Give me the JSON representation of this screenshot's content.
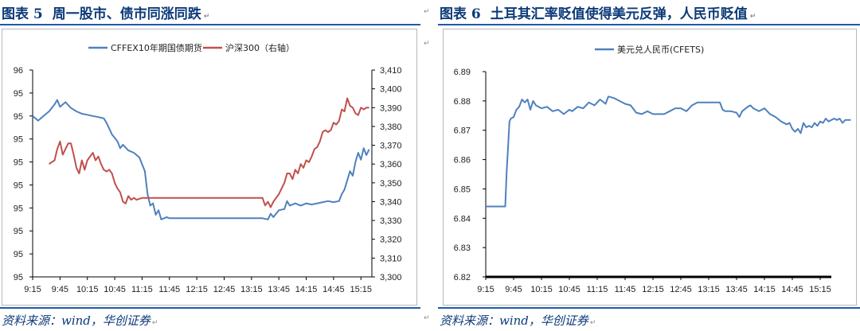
{
  "left": {
    "fig_num": "图表 5",
    "title": "周一股市、债市同涨同跌",
    "title_mark": "↵",
    "source": "资料来源：wind，华创证券",
    "source_mark": "↵"
  },
  "right": {
    "fig_num": "图表 6",
    "title": "土耳其汇率贬值使得美元反弹，人民币贬值",
    "title_mark": "↵",
    "source": "资料来源：wind，华创证券",
    "source_mark": "↵"
  },
  "colors": {
    "blue": "#4f81bd",
    "red": "#c0504d",
    "axis": "#000000",
    "title": "#0c3a78"
  },
  "chart_data": [
    {
      "type": "line",
      "x_ticks": [
        "9:15",
        "9:45",
        "10:15",
        "10:45",
        "11:15",
        "11:45",
        "12:15",
        "12:45",
        "13:15",
        "13:45",
        "14:15",
        "14:45",
        "15:15"
      ],
      "y_left_ticks": [
        "95",
        "95",
        "95",
        "95",
        "95",
        "95",
        "95",
        "95",
        "95",
        "96"
      ],
      "y_right_ticks": [
        "3,300",
        "3,310",
        "3,320",
        "3,330",
        "3,340",
        "3,350",
        "3,360",
        "3,370",
        "3,380",
        "3,390",
        "3,400",
        "3,410"
      ],
      "y_right_range": [
        3300,
        3410
      ],
      "series": [
        {
          "name": "CFFEX10年期国债期货",
          "axis": "left",
          "color": "#4f81bd",
          "points": [
            [
              0,
              7.0
            ],
            [
              2,
              6.8
            ],
            [
              4,
              7.0
            ],
            [
              6,
              7.2
            ],
            [
              8,
              7.5
            ],
            [
              9,
              7.7
            ],
            [
              10,
              7.4
            ],
            [
              12,
              7.6
            ],
            [
              14,
              7.35
            ],
            [
              16,
              7.2
            ],
            [
              18,
              7.1
            ],
            [
              20,
              7.05
            ],
            [
              22,
              7.0
            ],
            [
              24,
              6.95
            ],
            [
              26,
              6.9
            ],
            [
              27,
              6.7
            ],
            [
              29,
              6.2
            ],
            [
              31,
              5.9
            ],
            [
              32,
              5.6
            ],
            [
              33,
              5.75
            ],
            [
              35,
              5.5
            ],
            [
              37,
              5.4
            ],
            [
              39,
              5.2
            ],
            [
              40,
              4.9
            ],
            [
              41,
              4.6
            ],
            [
              42,
              3.6
            ],
            [
              43,
              3.1
            ],
            [
              44,
              3.2
            ],
            [
              45,
              2.7
            ],
            [
              46,
              2.9
            ],
            [
              47,
              2.5
            ],
            [
              48,
              2.55
            ],
            [
              49,
              2.6
            ],
            [
              50,
              2.55
            ],
            [
              55,
              2.55
            ],
            [
              60,
              2.55
            ],
            [
              65,
              2.55
            ],
            [
              70,
              2.55
            ],
            [
              75,
              2.55
            ],
            [
              80,
              2.55
            ],
            [
              84,
              2.55
            ],
            [
              86,
              2.5
            ],
            [
              87,
              2.75
            ],
            [
              88,
              2.6
            ],
            [
              90,
              2.9
            ],
            [
              92,
              2.95
            ],
            [
              93,
              3.3
            ],
            [
              94,
              3.1
            ],
            [
              96,
              3.2
            ],
            [
              98,
              3.1
            ],
            [
              100,
              3.2
            ],
            [
              102,
              3.15
            ],
            [
              104,
              3.2
            ],
            [
              106,
              3.25
            ],
            [
              108,
              3.3
            ],
            [
              110,
              3.25
            ],
            [
              112,
              3.3
            ],
            [
              113,
              3.6
            ],
            [
              114,
              3.8
            ],
            [
              115,
              4.2
            ],
            [
              116,
              4.6
            ],
            [
              117,
              4.4
            ],
            [
              118,
              5.0
            ],
            [
              119,
              5.4
            ],
            [
              120,
              5.1
            ],
            [
              121,
              5.6
            ],
            [
              122,
              5.3
            ],
            [
              123,
              5.55
            ]
          ]
        },
        {
          "name": "沪深300（右轴）",
          "axis": "right",
          "color": "#c0504d",
          "points": [
            [
              6,
              3360
            ],
            [
              7,
              3361
            ],
            [
              8,
              3362
            ],
            [
              9,
              3368
            ],
            [
              10,
              3372
            ],
            [
              11,
              3365
            ],
            [
              12,
              3368
            ],
            [
              13,
              3371
            ],
            [
              14,
              3371
            ],
            [
              15,
              3365
            ],
            [
              16,
              3358
            ],
            [
              17,
              3355
            ],
            [
              18,
              3362
            ],
            [
              19,
              3357
            ],
            [
              20,
              3362
            ],
            [
              21,
              3364
            ],
            [
              22,
              3366
            ],
            [
              23,
              3362
            ],
            [
              24,
              3364
            ],
            [
              25,
              3360
            ],
            [
              26,
              3357
            ],
            [
              27,
              3356
            ],
            [
              28,
              3357
            ],
            [
              29,
              3355
            ],
            [
              30,
              3350
            ],
            [
              31,
              3347
            ],
            [
              32,
              3345
            ],
            [
              33,
              3340
            ],
            [
              34,
              3339
            ],
            [
              35,
              3343
            ],
            [
              36,
              3341
            ],
            [
              37,
              3342
            ],
            [
              38,
              3341
            ],
            [
              40,
              3342
            ],
            [
              45,
              3342
            ],
            [
              50,
              3342
            ],
            [
              55,
              3342
            ],
            [
              60,
              3342
            ],
            [
              65,
              3342
            ],
            [
              70,
              3342
            ],
            [
              75,
              3342
            ],
            [
              80,
              3342
            ],
            [
              84,
              3342
            ],
            [
              85,
              3338
            ],
            [
              86,
              3340
            ],
            [
              87,
              3337
            ],
            [
              88,
              3340
            ],
            [
              89,
              3342
            ],
            [
              90,
              3344
            ],
            [
              91,
              3347
            ],
            [
              92,
              3350
            ],
            [
              93,
              3355
            ],
            [
              94,
              3355
            ],
            [
              95,
              3352
            ],
            [
              96,
              3357
            ],
            [
              97,
              3355
            ],
            [
              98,
              3360
            ],
            [
              99,
              3358
            ],
            [
              100,
              3362
            ],
            [
              101,
              3361
            ],
            [
              102,
              3364
            ],
            [
              103,
              3368
            ],
            [
              104,
              3369
            ],
            [
              105,
              3372
            ],
            [
              106,
              3377
            ],
            [
              107,
              3378
            ],
            [
              108,
              3377
            ],
            [
              109,
              3378
            ],
            [
              110,
              3382
            ],
            [
              111,
              3381
            ],
            [
              112,
              3383
            ],
            [
              113,
              3389
            ],
            [
              114,
              3388
            ],
            [
              115,
              3395
            ],
            [
              116,
              3391
            ],
            [
              117,
              3390
            ],
            [
              118,
              3387
            ],
            [
              119,
              3386
            ],
            [
              120,
              3390
            ],
            [
              121,
              3389
            ],
            [
              122,
              3390
            ],
            [
              123,
              3390
            ]
          ]
        }
      ]
    },
    {
      "type": "line",
      "x_ticks": [
        "9:15",
        "9:45",
        "10:15",
        "10:45",
        "11:15",
        "11:45",
        "12:15",
        "12:45",
        "13:15",
        "13:45",
        "14:15",
        "14:45",
        "15:15"
      ],
      "y_ticks": [
        "6.82",
        "6.83",
        "6.84",
        "6.85",
        "6.86",
        "6.87",
        "6.88",
        "6.89"
      ],
      "y_range": [
        6.82,
        6.89
      ],
      "series": [
        {
          "name": "美元兑人民币(CFETS)",
          "color": "#4f81bd",
          "points": [
            [
              0,
              6.844
            ],
            [
              6,
              6.844
            ],
            [
              7,
              6.844
            ],
            [
              7.5,
              6.856
            ],
            [
              8,
              6.864
            ],
            [
              8.5,
              6.873
            ],
            [
              9,
              6.874
            ],
            [
              10,
              6.8745
            ],
            [
              11,
              6.877
            ],
            [
              12,
              6.878
            ],
            [
              13,
              6.8805
            ],
            [
              14,
              6.8795
            ],
            [
              15,
              6.8805
            ],
            [
              16,
              6.877
            ],
            [
              17,
              6.88
            ],
            [
              18,
              6.8785
            ],
            [
              20,
              6.8775
            ],
            [
              22,
              6.878
            ],
            [
              24,
              6.8765
            ],
            [
              26,
              6.877
            ],
            [
              28,
              6.8755
            ],
            [
              30,
              6.877
            ],
            [
              31,
              6.8765
            ],
            [
              33,
              6.878
            ],
            [
              35,
              6.8775
            ],
            [
              37,
              6.8795
            ],
            [
              39,
              6.8785
            ],
            [
              41,
              6.8805
            ],
            [
              43,
              6.879
            ],
            [
              44,
              6.8815
            ],
            [
              46,
              6.881
            ],
            [
              48,
              6.88
            ],
            [
              50,
              6.879
            ],
            [
              52,
              6.8785
            ],
            [
              54,
              6.876
            ],
            [
              56,
              6.8755
            ],
            [
              58,
              6.8765
            ],
            [
              60,
              6.8755
            ],
            [
              62,
              6.8755
            ],
            [
              64,
              6.8755
            ],
            [
              66,
              6.8765
            ],
            [
              68,
              6.8775
            ],
            [
              70,
              6.8775
            ],
            [
              72,
              6.8765
            ],
            [
              74,
              6.8785
            ],
            [
              76,
              6.8795
            ],
            [
              78,
              6.8795
            ],
            [
              80,
              6.8795
            ],
            [
              82,
              6.8795
            ],
            [
              84,
              6.8795
            ],
            [
              85,
              6.877
            ],
            [
              86,
              6.8765
            ],
            [
              88,
              6.8765
            ],
            [
              90,
              6.876
            ],
            [
              91,
              6.8745
            ],
            [
              92,
              6.8765
            ],
            [
              94,
              6.878
            ],
            [
              95,
              6.8785
            ],
            [
              96,
              6.8775
            ],
            [
              98,
              6.8765
            ],
            [
              100,
              6.8775
            ],
            [
              102,
              6.8755
            ],
            [
              104,
              6.8745
            ],
            [
              106,
              6.873
            ],
            [
              108,
              6.872
            ],
            [
              109,
              6.8725
            ],
            [
              110,
              6.8705
            ],
            [
              111,
              6.8695
            ],
            [
              112,
              6.8705
            ],
            [
              113,
              6.869
            ],
            [
              114,
              6.8725
            ],
            [
              115,
              6.871
            ],
            [
              116,
              6.8715
            ],
            [
              117,
              6.871
            ],
            [
              118,
              6.8725
            ],
            [
              119,
              6.8715
            ],
            [
              120,
              6.873
            ],
            [
              121,
              6.8725
            ],
            [
              122,
              6.874
            ],
            [
              123,
              6.873
            ],
            [
              124,
              6.8735
            ],
            [
              125,
              6.874
            ],
            [
              126,
              6.8735
            ],
            [
              127,
              6.874
            ],
            [
              128,
              6.8725
            ],
            [
              129,
              6.8735
            ],
            [
              130,
              6.8735
            ],
            [
              131,
              6.8735
            ]
          ]
        }
      ]
    }
  ]
}
